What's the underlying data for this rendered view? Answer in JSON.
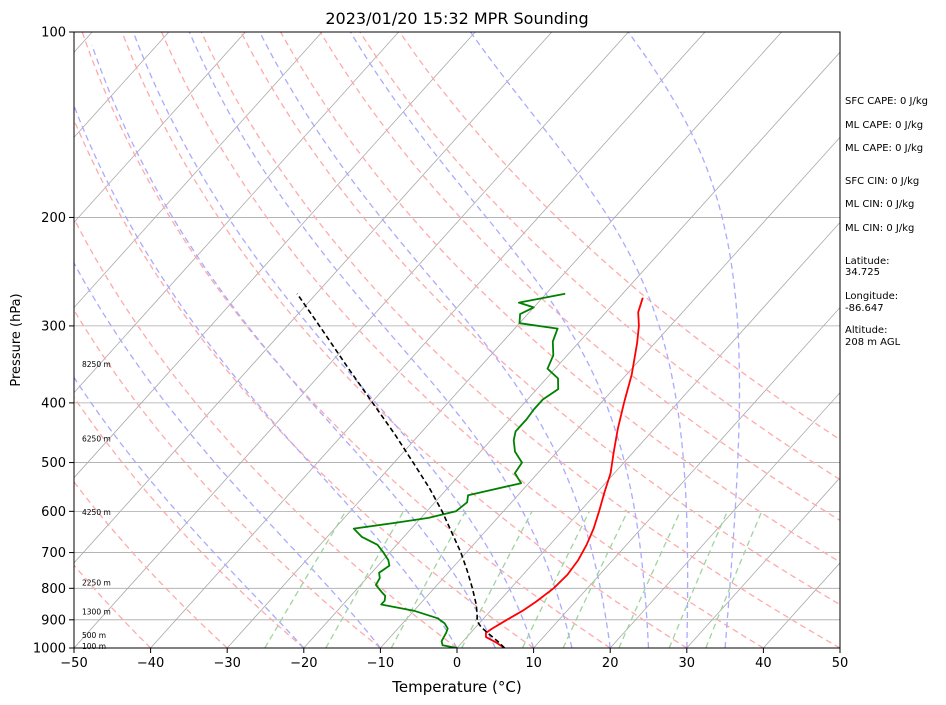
{
  "chart_data": {
    "type": "skew-t",
    "title": "2023/01/20 15:32 MPR Sounding",
    "xlabel": "Temperature (°C)",
    "ylabel": "Pressure (hPa)",
    "xlim": [
      -50,
      50
    ],
    "ylim_hpa": [
      1000,
      100
    ],
    "log_pressure_axis": true,
    "grid": true,
    "x_ticks": [
      -50,
      -40,
      -30,
      -20,
      -10,
      0,
      10,
      20,
      30,
      40,
      50
    ],
    "x_tick_labels": [
      "−50",
      "−40",
      "−30",
      "−20",
      "−10",
      "0",
      "10",
      "20",
      "30",
      "40",
      "50"
    ],
    "y_ticks": [
      100,
      200,
      300,
      400,
      500,
      600,
      700,
      800,
      900,
      1000
    ],
    "y_tick_labels": [
      "100",
      "200",
      "300",
      "400",
      "500",
      "600",
      "700",
      "800",
      "900",
      "1000"
    ],
    "series": [
      {
        "role": "temperature",
        "color": "#ff0000",
        "points": [
          [
            1000,
            6.2
          ],
          [
            980,
            4.5
          ],
          [
            960,
            2.5
          ],
          [
            945,
            2.0
          ],
          [
            930,
            2.3
          ],
          [
            900,
            3.2
          ],
          [
            870,
            4.2
          ],
          [
            840,
            4.9
          ],
          [
            800,
            5.6
          ],
          [
            760,
            5.8
          ],
          [
            720,
            5.5
          ],
          [
            680,
            4.8
          ],
          [
            640,
            3.8
          ],
          [
            600,
            2.5
          ],
          [
            560,
            1.0
          ],
          [
            520,
            -0.5
          ],
          [
            480,
            -2.6
          ],
          [
            440,
            -4.8
          ],
          [
            400,
            -7.0
          ],
          [
            360,
            -9.3
          ],
          [
            320,
            -12.3
          ],
          [
            300,
            -14.1
          ],
          [
            285,
            -15.8
          ],
          [
            270,
            -16.9
          ]
        ]
      },
      {
        "role": "dewpoint",
        "color": "#008000",
        "points": [
          [
            1000,
            0.0
          ],
          [
            990,
            -2.2
          ],
          [
            975,
            -2.8
          ],
          [
            960,
            -3.0
          ],
          [
            945,
            -3.2
          ],
          [
            930,
            -3.5
          ],
          [
            912,
            -4.5
          ],
          [
            895,
            -6.0
          ],
          [
            870,
            -10.0
          ],
          [
            850,
            -15.0
          ],
          [
            838,
            -15.0
          ],
          [
            823,
            -15.5
          ],
          [
            810,
            -16.5
          ],
          [
            790,
            -18.0
          ],
          [
            770,
            -18.3
          ],
          [
            755,
            -19.0
          ],
          [
            735,
            -18.5
          ],
          [
            720,
            -19.3
          ],
          [
            700,
            -20.8
          ],
          [
            680,
            -22.5
          ],
          [
            660,
            -25.5
          ],
          [
            640,
            -27.5
          ],
          [
            627,
            -23.0
          ],
          [
            615,
            -19.0
          ],
          [
            600,
            -16.2
          ],
          [
            580,
            -15.8
          ],
          [
            565,
            -16.5
          ],
          [
            540,
            -11.0
          ],
          [
            520,
            -13.0
          ],
          [
            500,
            -13.3
          ],
          [
            480,
            -15.5
          ],
          [
            460,
            -17.0
          ],
          [
            445,
            -17.8
          ],
          [
            425,
            -17.8
          ],
          [
            410,
            -18.0
          ],
          [
            395,
            -18.0
          ],
          [
            380,
            -17.2
          ],
          [
            365,
            -18.5
          ],
          [
            352,
            -21.0
          ],
          [
            335,
            -21.8
          ],
          [
            318,
            -23.5
          ],
          [
            303,
            -24.4
          ],
          [
            297,
            -30.0
          ],
          [
            287,
            -31.0
          ],
          [
            280,
            -30.0
          ],
          [
            275,
            -32.5
          ],
          [
            266,
            -27.5
          ]
        ]
      },
      {
        "role": "parcel",
        "color": "#000000",
        "dashed": true,
        "points": [
          [
            1000,
            6.2
          ],
          [
            975,
            4.5
          ],
          [
            950,
            2.6
          ],
          [
            925,
            0.7
          ],
          [
            905,
            -0.5
          ],
          [
            880,
            -1.4
          ],
          [
            850,
            -2.6
          ],
          [
            800,
            -5.0
          ],
          [
            750,
            -7.7
          ],
          [
            700,
            -10.7
          ],
          [
            650,
            -14.2
          ],
          [
            600,
            -18.0
          ],
          [
            550,
            -22.4
          ],
          [
            500,
            -27.5
          ],
          [
            450,
            -33.2
          ],
          [
            400,
            -39.8
          ],
          [
            350,
            -47.3
          ],
          [
            300,
            -55.8
          ],
          [
            266,
            -62.5
          ]
        ]
      }
    ],
    "background_lines": {
      "isotherms_c": [
        -160,
        -150,
        -140,
        -130,
        -120,
        -110,
        -100,
        -90,
        -80,
        -70,
        -60,
        -50,
        -40,
        -30,
        -20,
        -10,
        0,
        10,
        20,
        30,
        40,
        50
      ],
      "dry_adiabats_c": [
        -50,
        -40,
        -30,
        -20,
        -10,
        0,
        10,
        20,
        30,
        40,
        50,
        60,
        70,
        80,
        90,
        100
      ],
      "moist_adiabats_c": [
        -20,
        -10,
        0,
        5,
        10,
        15,
        20,
        25,
        30,
        35
      ],
      "mixing_ratios_gkg": [
        0.5,
        1,
        2,
        4,
        7,
        10,
        16,
        24,
        32
      ]
    },
    "line_colors": {
      "isotherm": "#a9a9a9",
      "dry_adiabat": "#ffaaaa",
      "moist_adiabat": "#aaaaff",
      "mixing_ratio": "#9fd49f"
    },
    "height_labels": [
      {
        "text": "100 m",
        "p": 993
      },
      {
        "text": "500 m",
        "p": 953
      },
      {
        "text": "1300 m",
        "p": 873
      },
      {
        "text": "2250 m",
        "p": 783
      },
      {
        "text": "4250 m",
        "p": 602
      },
      {
        "text": "6250 m",
        "p": 457
      },
      {
        "text": "8250 m",
        "p": 346
      }
    ],
    "annotations": [
      "SFC CAPE: 0 J/kg",
      "ML CAPE: 0 J/kg",
      "ML CAPE: 0 J/kg",
      "SFC CIN: 0 J/kg",
      "ML CIN: 0 J/kg",
      "ML CIN: 0 J/kg",
      "Latitude:",
      "34.725",
      "Longitude:",
      "-86.647",
      "Altitude:",
      "208 m AGL"
    ]
  }
}
